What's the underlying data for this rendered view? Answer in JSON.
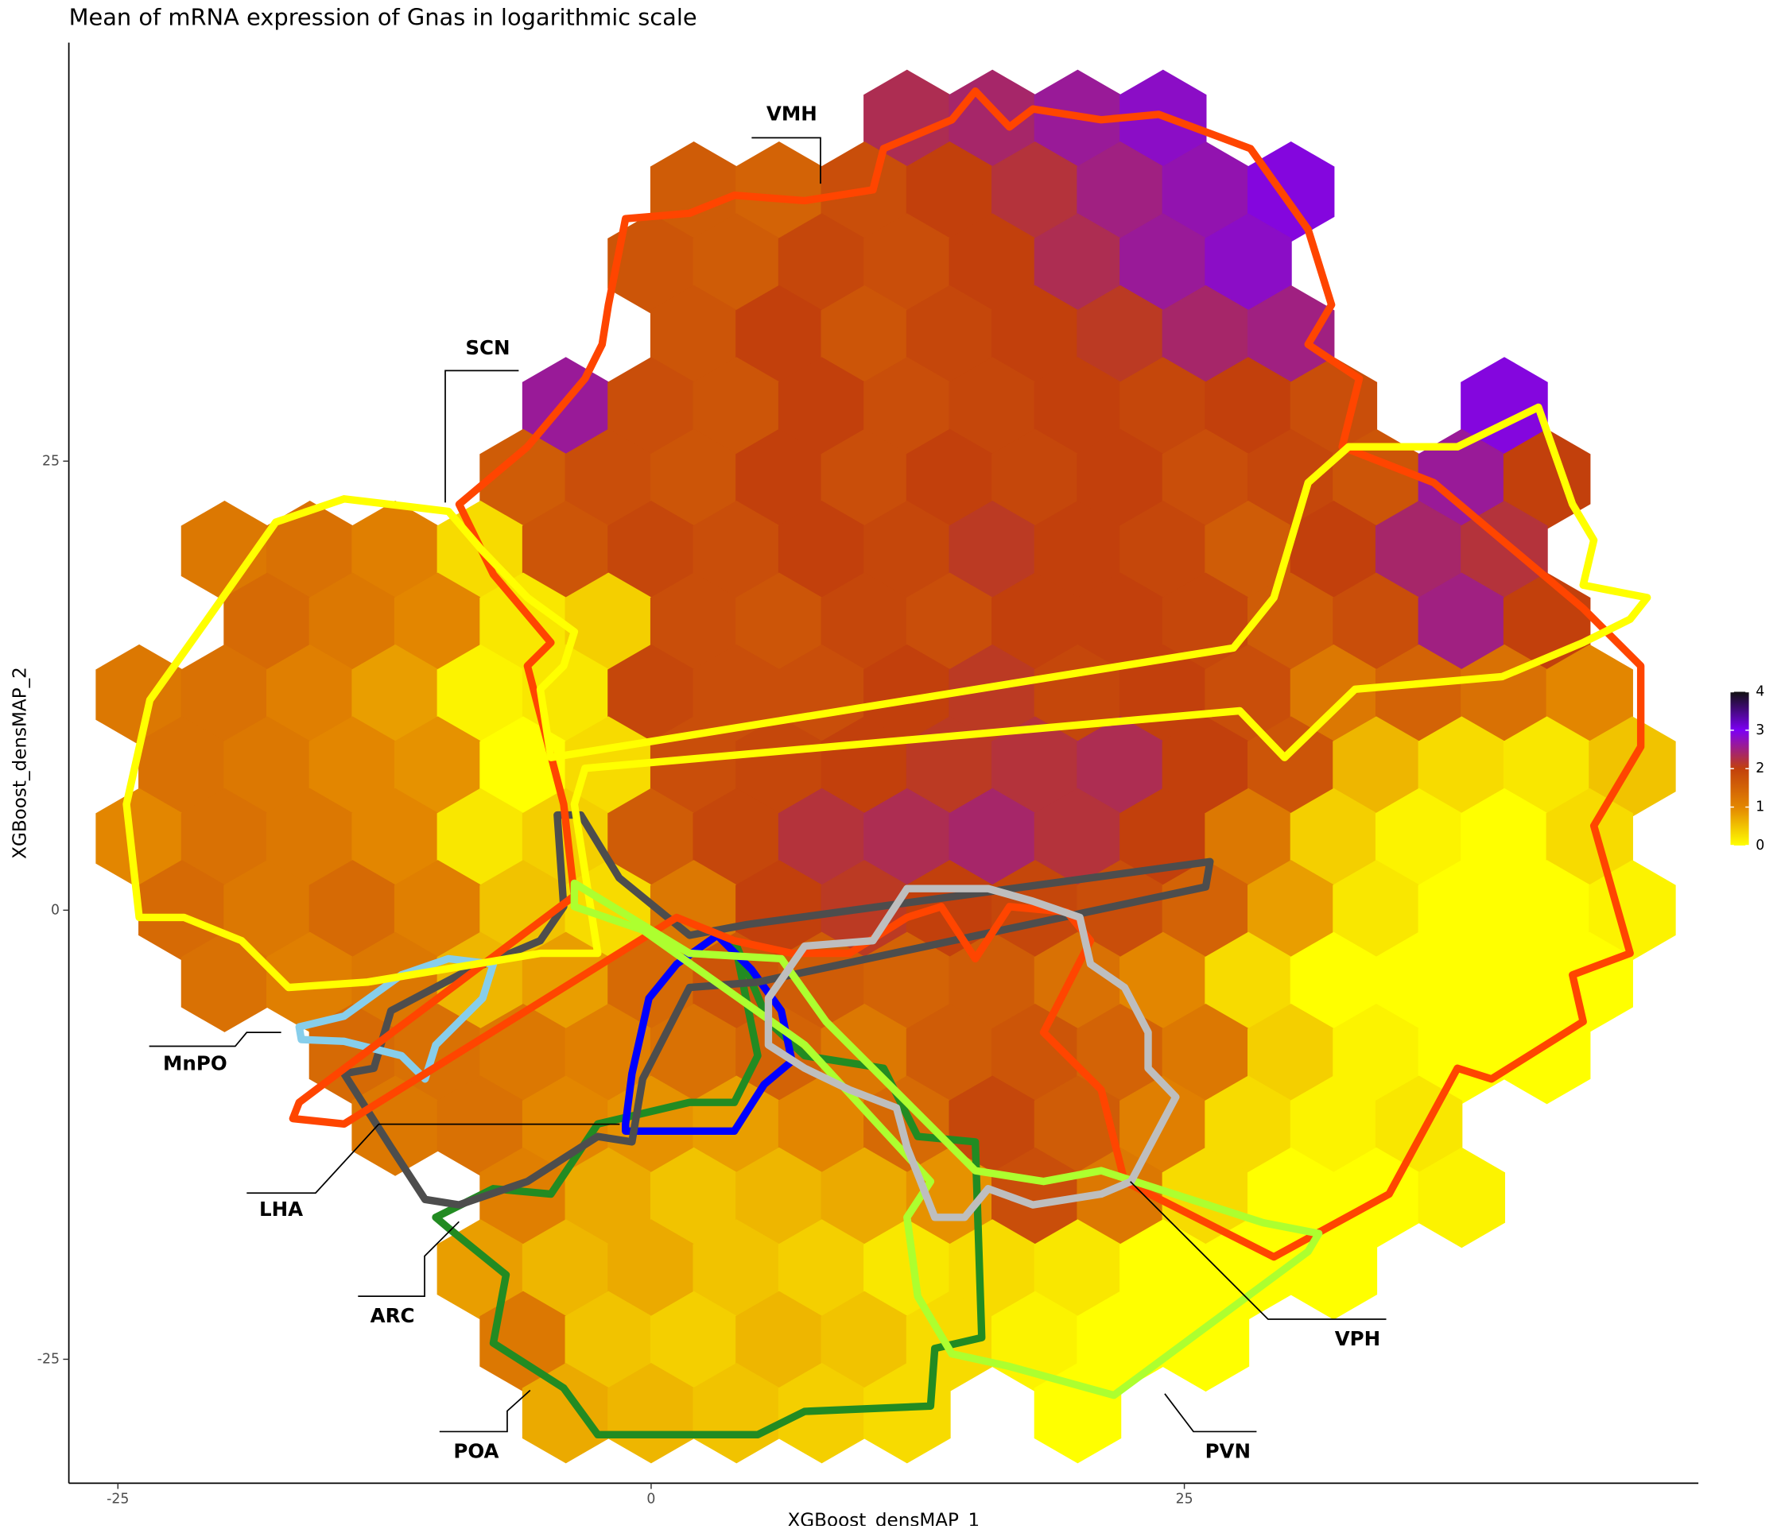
{
  "chart_data": {
    "type": "hexbin",
    "title": "Mean of mRNA expression of Gnas in logarithmic scale",
    "x_label": "XGBoost_densMAP_1",
    "y_label": "XGBoost_densMAP_2",
    "xlim": [
      -27.3,
      49.1
    ],
    "ylim": [
      -31.9,
      48.3
    ],
    "xticks": [
      -25,
      0,
      25
    ],
    "yticks": [
      -25,
      0,
      25
    ],
    "zlim": [
      0,
      4
    ],
    "zticks": [
      0,
      1,
      2,
      3,
      4
    ],
    "colors": [
      "#ffff00",
      "#e38600",
      "#c2400c",
      "#7d00f5",
      "#111111"
    ],
    "x": [
      -24,
      -20,
      -16,
      -12,
      -8,
      -4,
      0,
      4,
      8,
      12,
      16,
      20,
      24,
      28,
      32,
      36,
      40,
      44
    ],
    "y": [
      44,
      40,
      36,
      32,
      28,
      24,
      20,
      16,
      12,
      8,
      4,
      0,
      -4,
      -8,
      -12,
      -16,
      -20,
      -24,
      -28
    ],
    "values": [
      [
        null,
        null,
        null,
        null,
        null,
        null,
        null,
        null,
        null,
        2.3,
        2.4,
        2.6,
        2.8,
        null,
        null,
        null,
        null,
        null
      ],
      [
        null,
        null,
        null,
        null,
        null,
        null,
        1.6,
        1.5,
        1.8,
        2.0,
        2.2,
        2.5,
        2.7,
        2.9,
        null,
        null,
        null,
        null
      ],
      [
        null,
        null,
        null,
        null,
        null,
        null,
        1.7,
        1.6,
        1.9,
        1.8,
        2.0,
        2.3,
        2.6,
        2.8,
        null,
        null,
        null,
        null
      ],
      [
        null,
        null,
        null,
        null,
        null,
        null,
        1.7,
        2.0,
        1.7,
        1.9,
        2.0,
        2.1,
        2.4,
        2.5,
        null,
        null,
        null,
        null
      ],
      [
        null,
        null,
        null,
        null,
        null,
        2.6,
        1.8,
        1.7,
        2.0,
        1.8,
        1.9,
        2.0,
        1.9,
        2.0,
        1.8,
        null,
        2.9,
        null
      ],
      [
        null,
        null,
        null,
        null,
        1.6,
        1.8,
        1.7,
        2.0,
        1.8,
        2.0,
        1.9,
        2.0,
        1.8,
        1.9,
        1.7,
        2.6,
        2.0,
        null
      ],
      [
        null,
        1.2,
        1.3,
        1.1,
        0.3,
        1.7,
        1.9,
        1.8,
        2.0,
        1.9,
        2.1,
        2.0,
        1.9,
        1.6,
        2.0,
        2.4,
        2.2,
        null
      ],
      [
        null,
        1.4,
        1.2,
        1.0,
        0.2,
        0.4,
        1.8,
        1.7,
        1.9,
        1.8,
        2.0,
        2.0,
        1.9,
        1.6,
        1.8,
        2.5,
        2.0,
        null
      ],
      [
        1.2,
        1.3,
        1.1,
        0.8,
        0.1,
        0.2,
        1.9,
        1.8,
        1.8,
        2.0,
        2.1,
        1.9,
        2.0,
        1.8,
        1.2,
        1.5,
        1.3,
        1.0
      ],
      [
        1.3,
        1.2,
        1.0,
        0.9,
        0,
        0.3,
        1.8,
        1.9,
        2.0,
        2.1,
        2.2,
        2.3,
        2.0,
        1.7,
        0.6,
        0.3,
        0.2,
        0.5
      ],
      [
        1.0,
        1.3,
        1.2,
        1.0,
        0.2,
        0.4,
        1.6,
        1.9,
        2.2,
        2.3,
        2.4,
        2.2,
        2.0,
        1.2,
        0.4,
        0.1,
        0,
        0.3
      ],
      [
        1.4,
        1.2,
        1.4,
        1.1,
        0.5,
        0.3,
        1.2,
        2.0,
        2.1,
        2.0,
        1.9,
        1.8,
        1.5,
        0.8,
        0.2,
        0,
        0,
        0.1
      ],
      [
        null,
        1.3,
        1.1,
        1.2,
        0.6,
        0.8,
        1.4,
        1.7,
        1.6,
        1.5,
        1.6,
        1.3,
        1.0,
        0.3,
        0,
        0,
        0,
        0
      ],
      [
        null,
        null,
        1.4,
        1.3,
        1.2,
        1.1,
        1.3,
        1.5,
        1.2,
        1.6,
        1.7,
        1.5,
        1.2,
        0.4,
        0.1,
        0,
        0,
        null
      ],
      [
        null,
        null,
        null,
        1.2,
        1.3,
        1.0,
        0.9,
        0.8,
        1.0,
        1.4,
        1.9,
        1.6,
        1.1,
        0.3,
        0.1,
        0.2,
        null,
        null
      ],
      [
        null,
        null,
        null,
        null,
        1.1,
        0.7,
        0.5,
        0.6,
        0.7,
        0.9,
        1.8,
        1.2,
        0.3,
        0,
        0,
        0.1,
        null,
        null
      ],
      [
        null,
        null,
        null,
        null,
        0.8,
        0.6,
        0.7,
        0.5,
        0.4,
        0.2,
        0.3,
        0.2,
        0,
        0,
        0,
        null,
        null,
        null
      ],
      [
        null,
        null,
        null,
        null,
        1.2,
        0.5,
        0.4,
        0.6,
        0.5,
        0.3,
        0.1,
        0,
        0,
        null,
        null,
        null,
        null,
        null
      ],
      [
        null,
        null,
        null,
        null,
        null,
        0.7,
        0.6,
        0.5,
        0.4,
        0.3,
        null,
        0,
        null,
        null,
        null,
        null,
        null,
        null
      ]
    ],
    "regions": [
      {
        "name": "POA",
        "color": "#228b22",
        "x": [
          -10.1,
          -7.4,
          -4.7,
          -2.5,
          1.8,
          3.9,
          5.0,
          3.9,
          5.5,
          7.2,
          10.9,
          12.5,
          15.2,
          15.5,
          13.3,
          13.1,
          7.2,
          5.0,
          -2.5,
          -4.1,
          -7.4,
          -6.8,
          -9.5
        ],
        "y": [
          -17.1,
          -15.5,
          -15.8,
          -11.9,
          -10.7,
          -10.7,
          -8.1,
          -1.7,
          -6.2,
          -8.1,
          -8.8,
          -12.6,
          -12.9,
          -23.8,
          -24.4,
          -27.6,
          -27.9,
          -29.2,
          -29.2,
          -26.6,
          -24.1,
          -20.3,
          -17.7
        ]
      },
      {
        "name": "ARC",
        "color": "#0000ff",
        "x": [
          -1.2,
          -0.9,
          -0.1,
          1.2,
          3.1,
          4.7,
          6.1,
          6.6,
          5.3,
          3.9,
          1.8,
          -1.2
        ],
        "y": [
          -11.9,
          -9.1,
          -4.9,
          -3.0,
          -1.4,
          -3.3,
          -5.6,
          -8.4,
          -9.7,
          -12.3,
          -12.3,
          -12.3
        ]
      },
      {
        "name": "LHA",
        "color": "#4d4d4d",
        "x": [
          -4.4,
          -4.1,
          -5.2,
          -9.0,
          -12.2,
          -13.0,
          -14.4,
          -12.2,
          -10.6,
          -9.0,
          -5.8,
          -2.5,
          -0.9,
          -0.4,
          1.8,
          5.0,
          26.0,
          26.2,
          4.5,
          1.8,
          -1.5,
          -3.3
        ],
        "y": [
          5.3,
          0.2,
          -1.7,
          -3.6,
          -5.6,
          -8.8,
          -9.1,
          -13.2,
          -16.1,
          -16.4,
          -15.1,
          -12.6,
          -12.9,
          -9.4,
          -4.3,
          -4.0,
          1.3,
          2.7,
          -0.8,
          -1.4,
          1.8,
          5.3
        ]
      },
      {
        "name": "MnPO",
        "color": "#87ceeb",
        "x": [
          -16.5,
          -14.4,
          -11.7,
          -9.5,
          -7.4,
          -7.9,
          -10.1,
          -10.6,
          -11.7,
          -14.4,
          -16.4
        ],
        "y": [
          -6.5,
          -5.9,
          -3.6,
          -2.7,
          -3.0,
          -4.9,
          -7.5,
          -9.4,
          -8.1,
          -7.3,
          -7.2
        ]
      },
      {
        "name": "VMH",
        "color": "#ff4500",
        "x": [
          -2.0,
          -1.2,
          1.8,
          3.9,
          7.2,
          10.4,
          10.9,
          14.1,
          15.2,
          16.8,
          17.9,
          21.1,
          23.8,
          28.1,
          30.8,
          31.9,
          30.8,
          33.2,
          32.4,
          36.7,
          43.7,
          46.4,
          46.4,
          44.2,
          45.9,
          43.2,
          43.7,
          39.4,
          37.8,
          34.6,
          29.2,
          22.2,
          21.1,
          18.4,
          20.6,
          19.5,
          16.8,
          15.2,
          13.6,
          12.0,
          9.3,
          6.6,
          3.9,
          1.2,
          -14.4,
          -16.8,
          -16.5,
          -3.6,
          -4.1,
          -5.8,
          -4.7,
          -7.4,
          -9.0,
          -5.8,
          -3.1,
          -2.3
        ],
        "y": [
          33.7,
          38.5,
          38.8,
          39.8,
          39.5,
          40.1,
          42.4,
          44.0,
          45.6,
          43.6,
          44.6,
          44.0,
          44.3,
          42.4,
          37.9,
          33.7,
          31.5,
          29.6,
          25.8,
          23.8,
          16.8,
          13.6,
          9.1,
          4.7,
          -2.4,
          -3.6,
          -6.2,
          -9.4,
          -8.8,
          -15.8,
          -19.3,
          -15.1,
          -10.0,
          -6.8,
          -1.7,
          -0.1,
          0.2,
          -2.7,
          0.2,
          -0.4,
          -2.4,
          -2.4,
          -1.7,
          -0.4,
          -11.9,
          -11.6,
          -10.7,
          0.8,
          5.9,
          13.6,
          14.9,
          18.7,
          22.6,
          25.8,
          29.6,
          31.5
        ]
      },
      {
        "name": "SCN",
        "color": "#ffff00",
        "x": [
          -24.0,
          -24.6,
          -23.5,
          -20.8,
          -17.6,
          -14.4,
          -9.5,
          -7.9,
          -5.8,
          -3.6,
          -4.1,
          -5.2,
          -4.7,
          27.3,
          29.2,
          30.8,
          32.7,
          37.8,
          41.6,
          43.2,
          44.2,
          43.7,
          46.7,
          45.9,
          43.7,
          39.9,
          33.0,
          29.7,
          27.6,
          -3.1,
          -3.6,
          -2.5,
          -5.2,
          -13.3,
          -17.0,
          -19.2,
          -21.9
        ],
        "y": [
          -0.4,
          5.9,
          11.7,
          16.2,
          21.6,
          22.9,
          22.2,
          20.0,
          17.4,
          15.5,
          13.6,
          12.3,
          8.5,
          14.6,
          17.4,
          23.8,
          25.8,
          25.8,
          28.0,
          22.6,
          20.6,
          18.1,
          17.4,
          16.2,
          14.9,
          13.0,
          12.3,
          8.5,
          11.1,
          7.9,
          5.9,
          -2.4,
          -2.4,
          -4.0,
          -4.3,
          -1.7,
          -0.4
        ]
      },
      {
        "name": "PVN",
        "color": "#adff2f",
        "x": [
          -3.6,
          1.8,
          6.1,
          8.2,
          12.0,
          15.2,
          18.4,
          21.1,
          28.7,
          31.3,
          30.8,
          21.7,
          16.8,
          14.1,
          12.5,
          12.0,
          13.1,
          7.2,
          -0.4,
          -3.6
        ],
        "y": [
          1.5,
          -2.4,
          -2.7,
          -6.2,
          -10.7,
          -14.5,
          -15.1,
          -14.5,
          -17.4,
          -18.0,
          -19.0,
          -27.0,
          -25.4,
          -24.7,
          -21.5,
          -17.1,
          -15.1,
          -7.5,
          -1.1,
          0.2
        ]
      },
      {
        "name": "VPH",
        "color": "#bebebe",
        "x": [
          5.5,
          7.2,
          10.4,
          12.0,
          15.8,
          17.9,
          20.1,
          20.6,
          22.2,
          23.3,
          23.3,
          24.6,
          22.5,
          21.1,
          17.9,
          15.8,
          14.7,
          13.3,
          12.0,
          11.5,
          9.3,
          7.2,
          5.5
        ],
        "y": [
          -4.9,
          -2.0,
          -1.7,
          1.2,
          1.2,
          0.5,
          -0.4,
          -3.0,
          -4.3,
          -6.8,
          -8.8,
          -10.4,
          -15.1,
          -15.8,
          -16.4,
          -15.5,
          -17.1,
          -17.1,
          -13.2,
          -11.0,
          -10.0,
          -8.8,
          -7.5
        ]
      }
    ]
  }
}
